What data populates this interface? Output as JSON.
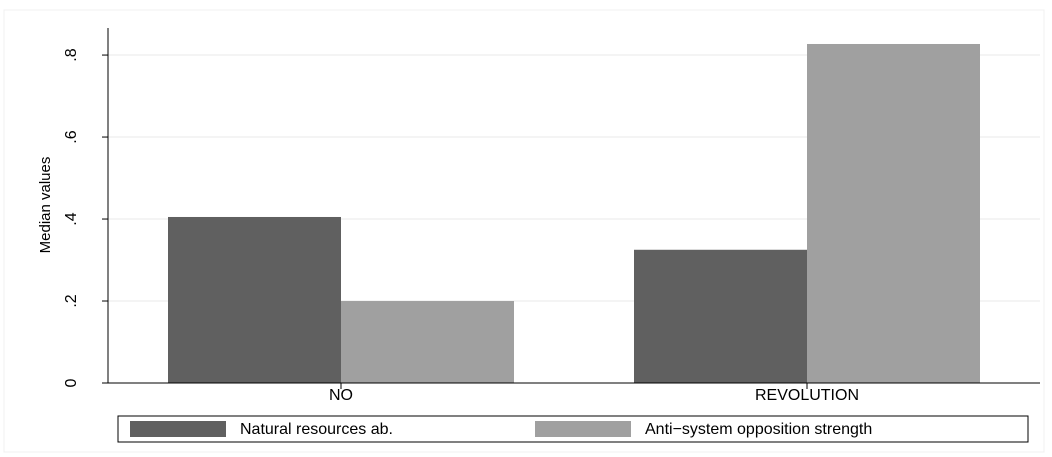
{
  "chart_data": {
    "type": "bar",
    "y_label": "Median values",
    "categories": [
      "NO",
      "REVOLUTION"
    ],
    "series": [
      {
        "name": "Natural resources ab.",
        "color": "#606060",
        "values": [
          0.405,
          0.325
        ]
      },
      {
        "name": "Anti−system opposition strength",
        "color": "#a0a0a0",
        "values": [
          0.2,
          0.827
        ]
      }
    ],
    "ylim": [
      0,
      0.866
    ],
    "yticks": [
      0,
      {
        "value": 0.2,
        "label": ".2"
      },
      {
        "value": 0.4,
        "label": ".4"
      },
      {
        "value": 0.6,
        "label": ".6"
      },
      {
        "value": 0.8,
        "label": ".8"
      }
    ],
    "grid": true
  }
}
